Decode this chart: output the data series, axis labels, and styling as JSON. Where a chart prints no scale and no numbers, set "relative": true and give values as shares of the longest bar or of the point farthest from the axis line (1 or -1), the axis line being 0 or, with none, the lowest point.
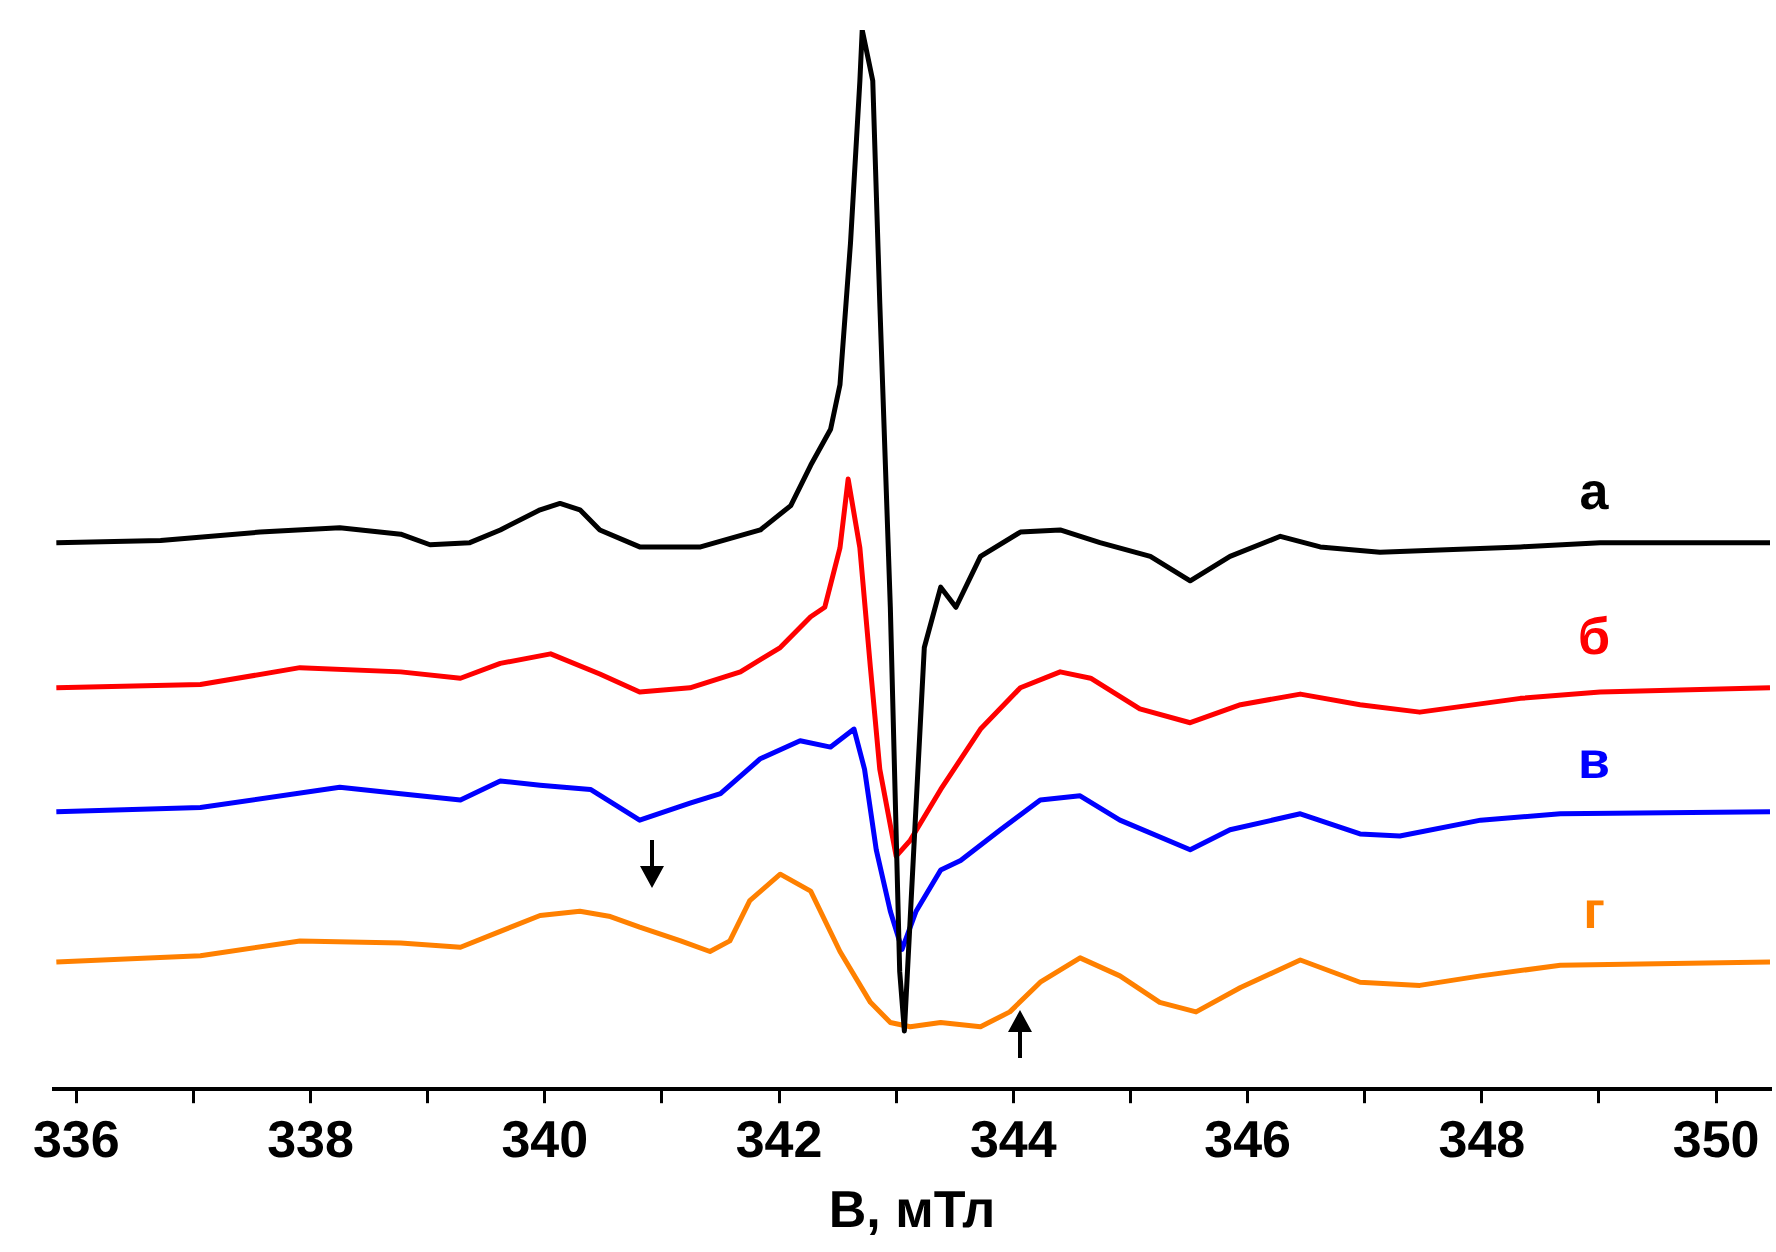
{
  "chart_data": {
    "type": "line",
    "xlabel": "B, мТл",
    "relative": true,
    "grid": false,
    "legend": false,
    "marker": "none",
    "line_style": "solid",
    "tick_labels": "x",
    "xlim": [
      335.81,
      350.46
    ],
    "xticks": [
      336,
      {
        "value": 337,
        "label": null
      },
      338,
      {
        "value": 339,
        "label": null
      },
      340,
      {
        "value": 341,
        "label": null
      },
      342,
      {
        "value": 343,
        "label": null
      },
      344,
      {
        "value": 345,
        "label": null
      },
      346,
      {
        "value": 347,
        "label": null
      },
      348,
      {
        "value": 349,
        "label": null
      },
      350
    ],
    "series": [
      {
        "name": "а",
        "color": "#000000",
        "x": [
          335.83,
          336.72,
          337.57,
          338.25,
          338.77,
          339.02,
          339.36,
          339.62,
          339.96,
          340.13,
          340.3,
          340.47,
          340.81,
          341.33,
          341.84,
          342.1,
          342.27,
          342.44,
          342.52,
          342.61,
          342.69,
          342.71,
          342.8,
          342.86,
          342.95,
          343.03,
          343.07,
          343.15,
          343.24,
          343.38,
          343.51,
          343.72,
          344.06,
          344.4,
          344.74,
          345.17,
          345.51,
          345.85,
          346.28,
          346.62,
          347.13,
          347.64,
          348.33,
          349.01,
          349.69,
          350.46
        ],
        "values": [
          0.516,
          0.518,
          0.526,
          0.53,
          0.524,
          0.514,
          0.516,
          0.528,
          0.547,
          0.553,
          0.547,
          0.528,
          0.512,
          0.512,
          0.528,
          0.551,
          0.589,
          0.623,
          0.665,
          0.799,
          0.952,
          1.0,
          0.952,
          0.742,
          0.455,
          0.111,
          0.055,
          0.226,
          0.417,
          0.474,
          0.455,
          0.503,
          0.526,
          0.528,
          0.516,
          0.503,
          0.48,
          0.503,
          0.522,
          0.512,
          0.507,
          0.509,
          0.512,
          0.516,
          0.516,
          0.516
        ]
      },
      {
        "name": "б",
        "color": "#ff0000",
        "x": [
          335.83,
          337.06,
          337.91,
          338.77,
          339.28,
          339.62,
          340.05,
          340.47,
          340.81,
          341.24,
          341.67,
          342.01,
          342.27,
          342.39,
          342.52,
          342.59,
          342.69,
          342.78,
          342.86,
          343.0,
          343.12,
          343.38,
          343.72,
          344.06,
          344.4,
          344.66,
          345.08,
          345.51,
          345.94,
          346.45,
          346.96,
          347.47,
          348.33,
          349.01,
          350.46
        ],
        "values": [
          0.379,
          0.382,
          0.398,
          0.394,
          0.388,
          0.402,
          0.411,
          0.392,
          0.375,
          0.379,
          0.394,
          0.417,
          0.446,
          0.455,
          0.511,
          0.576,
          0.511,
          0.398,
          0.302,
          0.22,
          0.235,
          0.283,
          0.34,
          0.379,
          0.394,
          0.388,
          0.359,
          0.346,
          0.363,
          0.373,
          0.363,
          0.356,
          0.369,
          0.375,
          0.379
        ]
      },
      {
        "name": "в",
        "color": "#0000ff",
        "x": [
          335.83,
          337.06,
          338.25,
          338.77,
          339.28,
          339.62,
          339.96,
          340.39,
          340.81,
          341.24,
          341.5,
          341.84,
          342.18,
          342.44,
          342.64,
          342.73,
          342.83,
          342.95,
          343.05,
          343.17,
          343.38,
          343.55,
          343.89,
          344.23,
          344.57,
          344.91,
          345.51,
          345.85,
          346.45,
          346.96,
          347.3,
          347.99,
          348.67,
          350.46
        ],
        "values": [
          0.262,
          0.266,
          0.285,
          0.279,
          0.273,
          0.291,
          0.287,
          0.283,
          0.254,
          0.27,
          0.279,
          0.312,
          0.329,
          0.323,
          0.34,
          0.302,
          0.226,
          0.168,
          0.132,
          0.168,
          0.207,
          0.216,
          0.245,
          0.273,
          0.277,
          0.254,
          0.226,
          0.245,
          0.26,
          0.241,
          0.239,
          0.254,
          0.26,
          0.262
        ]
      },
      {
        "name": "г",
        "color": "#ff8000",
        "x": [
          335.83,
          337.06,
          337.91,
          338.77,
          339.28,
          339.62,
          339.96,
          340.3,
          340.56,
          340.81,
          341.16,
          341.41,
          341.58,
          341.75,
          342.01,
          342.27,
          342.52,
          342.78,
          342.95,
          343.12,
          343.38,
          343.72,
          343.97,
          344.23,
          344.57,
          344.91,
          345.25,
          345.56,
          345.94,
          346.45,
          346.96,
          347.47,
          347.99,
          348.67,
          350.46
        ],
        "values": [
          0.12,
          0.126,
          0.14,
          0.138,
          0.134,
          0.149,
          0.164,
          0.168,
          0.163,
          0.153,
          0.14,
          0.13,
          0.14,
          0.178,
          0.203,
          0.187,
          0.13,
          0.082,
          0.063,
          0.059,
          0.063,
          0.059,
          0.073,
          0.101,
          0.124,
          0.107,
          0.082,
          0.073,
          0.096,
          0.122,
          0.101,
          0.098,
          0.107,
          0.117,
          0.12
        ]
      }
    ]
  }
}
